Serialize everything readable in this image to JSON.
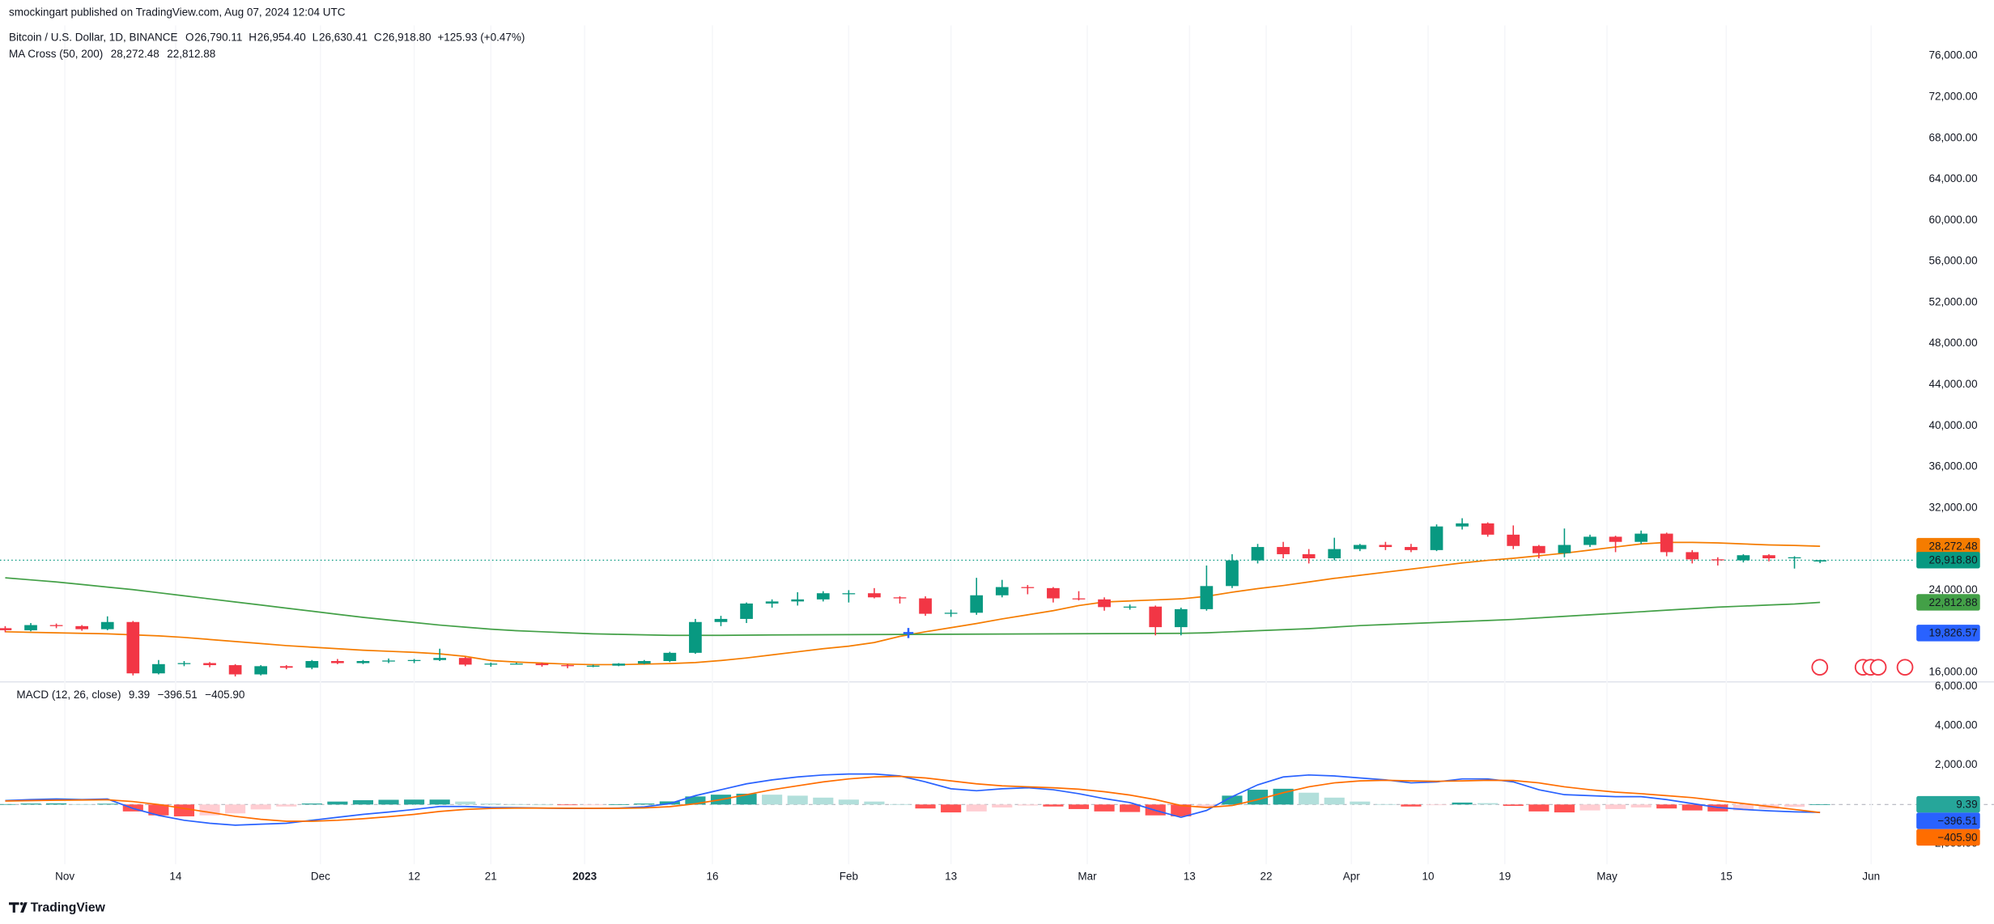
{
  "header": {
    "publisher": "smockingart published on TradingView.com, Aug 07, 2024 12:04 UTC"
  },
  "footer": {
    "brand": "TradingView"
  },
  "chart_data": [
    {
      "type": "candlestick",
      "title": "Bitcoin / U.S. Dollar, 1D, BINANCE",
      "ohlc": [
        {
          "key": "O",
          "label": "26,790.11"
        },
        {
          "key": "H",
          "label": "26,954.40"
        },
        {
          "key": "L",
          "label": "26,630.41"
        },
        {
          "key": "C",
          "label": "26,918.80"
        }
      ],
      "change": "+125.93 (+0.47%)",
      "indicator": "MA Cross (50, 200)",
      "x": [
        "2022-10-25",
        "2022-10-28",
        "2022-10-31",
        "2022-11-03",
        "2022-11-06",
        "2022-11-09",
        "2022-11-12",
        "2022-11-15",
        "2022-11-18",
        "2022-11-21",
        "2022-11-24",
        "2022-11-27",
        "2022-11-30",
        "2022-12-03",
        "2022-12-06",
        "2022-12-09",
        "2022-12-12",
        "2022-12-15",
        "2022-12-18",
        "2022-12-21",
        "2022-12-24",
        "2022-12-27",
        "2022-12-30",
        "2023-01-02",
        "2023-01-05",
        "2023-01-08",
        "2023-01-11",
        "2023-01-14",
        "2023-01-17",
        "2023-01-20",
        "2023-01-23",
        "2023-01-26",
        "2023-01-29",
        "2023-02-01",
        "2023-02-04",
        "2023-02-07",
        "2023-02-10",
        "2023-02-13",
        "2023-02-16",
        "2023-02-19",
        "2023-02-22",
        "2023-02-25",
        "2023-02-28",
        "2023-03-03",
        "2023-03-06",
        "2023-03-09",
        "2023-03-12",
        "2023-03-15",
        "2023-03-18",
        "2023-03-21",
        "2023-03-24",
        "2023-03-27",
        "2023-03-30",
        "2023-04-02",
        "2023-04-05",
        "2023-04-08",
        "2023-04-11",
        "2023-04-14",
        "2023-04-17",
        "2023-04-20",
        "2023-04-23",
        "2023-04-26",
        "2023-04-29",
        "2023-05-02",
        "2023-05-05",
        "2023-05-08",
        "2023-05-11",
        "2023-05-14",
        "2023-05-17",
        "2023-05-20",
        "2023-05-23",
        "2023-05-26"
      ],
      "open": [
        20300,
        20100,
        20600,
        20500,
        20200,
        20900,
        15900,
        16800,
        16900,
        16700,
        15800,
        16600,
        16450,
        17100,
        16900,
        17100,
        17150,
        17200,
        17400,
        16750,
        16850,
        16850,
        16700,
        16600,
        16650,
        16850,
        17100,
        17900,
        20900,
        21200,
        22700,
        22900,
        23100,
        23700,
        23700,
        23300,
        23200,
        21700,
        21800,
        23500,
        24300,
        24200,
        23200,
        23100,
        22350,
        22400,
        20400,
        22150,
        24400,
        26900,
        28200,
        27500,
        27100,
        28000,
        28400,
        28200,
        27900,
        30200,
        30500,
        29400,
        28300,
        27600,
        28400,
        29200,
        28700,
        29500,
        27700,
        27000,
        26900,
        27400,
        27100,
        26790.11
      ],
      "high": [
        20500,
        20800,
        20750,
        20600,
        21450,
        21000,
        17200,
        17100,
        17000,
        16800,
        16700,
        16700,
        17200,
        17300,
        17200,
        17350,
        17300,
        18300,
        17500,
        16950,
        16950,
        16950,
        16800,
        16750,
        16900,
        17200,
        18000,
        21200,
        21500,
        22800,
        23100,
        23800,
        23900,
        24000,
        24200,
        23400,
        23400,
        22100,
        25200,
        25000,
        24500,
        24300,
        23900,
        23300,
        22600,
        22500,
        22300,
        26400,
        27500,
        28500,
        28700,
        28000,
        29100,
        28500,
        28700,
        28500,
        30400,
        31000,
        30600,
        30300,
        28400,
        30000,
        29400,
        29300,
        29800,
        29600,
        27900,
        27200,
        27500,
        27500,
        27300,
        26954.4
      ],
      "low": [
        19900,
        20000,
        20300,
        20050,
        20100,
        15700,
        15800,
        16600,
        16500,
        15600,
        15700,
        16300,
        16300,
        16800,
        16800,
        16900,
        16900,
        17100,
        16600,
        16550,
        16750,
        16550,
        16400,
        16500,
        16600,
        16800,
        17000,
        17800,
        20500,
        20800,
        22300,
        22500,
        22900,
        22800,
        23200,
        22700,
        21500,
        21400,
        21600,
        23300,
        23600,
        22800,
        23000,
        22000,
        22100,
        19600,
        19600,
        22000,
        24200,
        26600,
        27100,
        26600,
        26900,
        27800,
        27900,
        27700,
        27800,
        29900,
        29200,
        28000,
        27100,
        27200,
        28200,
        27700,
        28500,
        27300,
        26600,
        26400,
        26700,
        26800,
        26100,
        26630.41
      ],
      "close": [
        20100,
        20600,
        20500,
        20200,
        20900,
        15900,
        16800,
        16900,
        16700,
        15800,
        16600,
        16450,
        17100,
        16900,
        17100,
        17150,
        17200,
        17400,
        16750,
        16850,
        16850,
        16700,
        16600,
        16650,
        16850,
        17100,
        17900,
        20900,
        21200,
        22700,
        22900,
        23100,
        23700,
        23700,
        23300,
        23200,
        21700,
        21800,
        23500,
        24300,
        24200,
        23200,
        23100,
        22350,
        22400,
        20400,
        22150,
        24400,
        26900,
        28200,
        27500,
        27100,
        28000,
        28400,
        28200,
        27900,
        30200,
        30500,
        29400,
        28300,
        27600,
        28400,
        29200,
        28700,
        29500,
        27700,
        27000,
        26900,
        27400,
        27100,
        27200,
        26918.8
      ],
      "up_color": "#089981",
      "down_color": "#f23645",
      "series": [
        {
          "color": "#f57c00",
          "values": [
            19950,
            19900,
            19850,
            19800,
            19750,
            19650,
            19550,
            19400,
            19200,
            19000,
            18800,
            18600,
            18450,
            18300,
            18150,
            18050,
            17950,
            17800,
            17550,
            17150,
            17000,
            16900,
            16800,
            16750,
            16750,
            16800,
            16850,
            16950,
            17150,
            17400,
            17700,
            18000,
            18300,
            18550,
            18900,
            19500,
            19950,
            20350,
            20750,
            21200,
            21600,
            22000,
            22500,
            22850,
            22950,
            23050,
            23150,
            23400,
            23800,
            24150,
            24450,
            24800,
            25150,
            25450,
            25750,
            26050,
            26350,
            26650,
            26900,
            27100,
            27350,
            27600,
            27900,
            28200,
            28500,
            28650,
            28650,
            28600,
            28500,
            28400,
            28350,
            28272.48
          ]
        },
        {
          "color": "#43a047",
          "values": [
            25200,
            25000,
            24800,
            24550,
            24300,
            24050,
            23750,
            23450,
            23150,
            22850,
            22550,
            22250,
            21950,
            21650,
            21350,
            21100,
            20850,
            20600,
            20400,
            20200,
            20050,
            19950,
            19850,
            19750,
            19700,
            19650,
            19600,
            19600,
            19600,
            19620,
            19640,
            19650,
            19660,
            19670,
            19680,
            19690,
            19700,
            19710,
            19720,
            19730,
            19740,
            19750,
            19760,
            19770,
            19780,
            19790,
            19800,
            19850,
            19950,
            20050,
            20150,
            20250,
            20400,
            20550,
            20650,
            20750,
            20850,
            20950,
            21050,
            21150,
            21300,
            21450,
            21600,
            21750,
            21900,
            22050,
            22200,
            22350,
            22450,
            22550,
            22650,
            22812.88
          ]
        }
      ],
      "price_labels": [
        {
          "value": 28272.48,
          "label": "28,272.48",
          "color": "#f57c00"
        },
        {
          "value": 26918.8,
          "label": "26,918.80",
          "color": "#089981"
        },
        {
          "value": 22812.88,
          "label": "22,812.88",
          "color": "#43a047"
        }
      ],
      "crosshair": {
        "x": "2023-02-08",
        "value": 19826.57,
        "label": "19,826.57",
        "color": "#2962ff"
      },
      "ylim": [
        15134,
        78970
      ],
      "yticks": [
        {
          "value": 16000,
          "label": "16,000.00"
        },
        {
          "value": 20000,
          "label": "20,000.00"
        },
        {
          "value": 24000,
          "label": "24,000.00"
        },
        {
          "value": 28000,
          "label": "28,000.00"
        },
        {
          "value": 32000,
          "label": "32,000.00"
        },
        {
          "value": 36000,
          "label": "36,000.00"
        },
        {
          "value": 40000,
          "label": "40,000.00"
        },
        {
          "value": 44000,
          "label": "44,000.00"
        },
        {
          "value": 48000,
          "label": "48,000.00"
        },
        {
          "value": 52000,
          "label": "52,000.00"
        },
        {
          "value": 56000,
          "label": "56,000.00"
        },
        {
          "value": 60000,
          "label": "60,000.00"
        },
        {
          "value": 64000,
          "label": "64,000.00"
        },
        {
          "value": 68000,
          "label": "68,000.00"
        },
        {
          "value": 72000,
          "label": "72,000.00"
        },
        {
          "value": 76000,
          "label": "76,000.00"
        }
      ],
      "grid": true
    },
    {
      "type": "macd",
      "title": "MACD (12, 26, close)",
      "x": [
        "2022-10-25",
        "2022-10-28",
        "2022-10-31",
        "2022-11-03",
        "2022-11-06",
        "2022-11-09",
        "2022-11-12",
        "2022-11-15",
        "2022-11-18",
        "2022-11-21",
        "2022-11-24",
        "2022-11-27",
        "2022-11-30",
        "2022-12-03",
        "2022-12-06",
        "2022-12-09",
        "2022-12-12",
        "2022-12-15",
        "2022-12-18",
        "2022-12-21",
        "2022-12-24",
        "2022-12-27",
        "2022-12-30",
        "2023-01-02",
        "2023-01-05",
        "2023-01-08",
        "2023-01-11",
        "2023-01-14",
        "2023-01-17",
        "2023-01-20",
        "2023-01-23",
        "2023-01-26",
        "2023-01-29",
        "2023-02-01",
        "2023-02-04",
        "2023-02-07",
        "2023-02-10",
        "2023-02-13",
        "2023-02-16",
        "2023-02-19",
        "2023-02-22",
        "2023-02-25",
        "2023-02-28",
        "2023-03-03",
        "2023-03-06",
        "2023-03-09",
        "2023-03-12",
        "2023-03-15",
        "2023-03-18",
        "2023-03-21",
        "2023-03-24",
        "2023-03-27",
        "2023-03-30",
        "2023-04-02",
        "2023-04-05",
        "2023-04-08",
        "2023-04-11",
        "2023-04-14",
        "2023-04-17",
        "2023-04-20",
        "2023-04-23",
        "2023-04-26",
        "2023-04-29",
        "2023-05-02",
        "2023-05-05",
        "2023-05-08",
        "2023-05-11",
        "2023-05-14",
        "2023-05-17",
        "2023-05-20",
        "2023-05-23",
        "2023-05-26"
      ],
      "histogram": [
        20,
        50,
        60,
        20,
        40,
        -350,
        -550,
        -600,
        -550,
        -450,
        -250,
        -100,
        50,
        150,
        220,
        240,
        250,
        250,
        150,
        50,
        20,
        0,
        -15,
        -10,
        10,
        50,
        160,
        410,
        500,
        550,
        500,
        450,
        350,
        250,
        150,
        20,
        -200,
        -400,
        -350,
        -150,
        -50,
        -100,
        -230,
        -350,
        -380,
        -550,
        -600,
        -150,
        450,
        750,
        800,
        600,
        350,
        150,
        20,
        -100,
        -30,
        100,
        70,
        -70,
        -350,
        -400,
        -300,
        -230,
        -150,
        -200,
        -300,
        -350,
        -300,
        -220,
        -120,
        9.39
      ],
      "hist_colors": [
        "#26a69a",
        "#b2dfdb",
        "#ffcdd2",
        "#ff5252"
      ],
      "series": [
        {
          "color": "#2962ff",
          "values": [
            200,
            250,
            280,
            250,
            280,
            -200,
            -550,
            -800,
            -950,
            -1050,
            -1000,
            -950,
            -800,
            -650,
            -500,
            -380,
            -250,
            -100,
            -100,
            -150,
            -160,
            -180,
            -200,
            -200,
            -180,
            -120,
            50,
            450,
            750,
            1050,
            1250,
            1400,
            1500,
            1550,
            1550,
            1450,
            1150,
            800,
            700,
            800,
            850,
            750,
            550,
            300,
            100,
            -300,
            -650,
            -300,
            400,
            1000,
            1400,
            1500,
            1450,
            1350,
            1250,
            1100,
            1150,
            1300,
            1300,
            1150,
            750,
            500,
            450,
            400,
            400,
            250,
            50,
            -150,
            -250,
            -320,
            -370,
            -396.51
          ]
        },
        {
          "color": "#ff6d00",
          "values": [
            180,
            200,
            220,
            230,
            240,
            150,
            0,
            -200,
            -400,
            -600,
            -750,
            -850,
            -850,
            -800,
            -720,
            -620,
            -500,
            -350,
            -250,
            -200,
            -180,
            -180,
            -185,
            -190,
            -190,
            -170,
            -110,
            40,
            250,
            500,
            750,
            950,
            1150,
            1300,
            1400,
            1430,
            1350,
            1200,
            1050,
            950,
            900,
            850,
            780,
            650,
            480,
            250,
            -50,
            -150,
            -50,
            250,
            600,
            900,
            1100,
            1200,
            1230,
            1200,
            1180,
            1200,
            1230,
            1220,
            1100,
            900,
            750,
            630,
            550,
            450,
            350,
            200,
            50,
            -100,
            -250,
            -405.9
          ]
        }
      ],
      "last_labels": [
        {
          "value": 9.39,
          "label": "9.39",
          "color": "#26a69a"
        },
        {
          "value": -396.51,
          "label": "−396.51",
          "color": "#2962ff"
        },
        {
          "value": -405.9,
          "label": "−405.90",
          "color": "#ff6d00"
        }
      ],
      "ylim": [
        -3032,
        6194
      ],
      "yticks": [
        {
          "value": 6000,
          "label": "6,000.00"
        },
        {
          "value": 4000,
          "label": "4,000.00"
        },
        {
          "value": 2000,
          "label": "2,000.00"
        },
        {
          "value": -2000,
          "label": "−2,000.00"
        }
      ],
      "xticks": [
        {
          "value": "2022-11-01",
          "label": "Nov"
        },
        {
          "value": "2022-11-14",
          "label": "14"
        },
        {
          "value": "2022-12-01",
          "label": "Dec"
        },
        {
          "value": "2022-12-12",
          "label": "12"
        },
        {
          "value": "2022-12-21",
          "label": "21"
        },
        {
          "value": "2023-01-01",
          "label": "2023"
        },
        {
          "value": "2023-01-16",
          "label": "16"
        },
        {
          "value": "2023-02-01",
          "label": "Feb"
        },
        {
          "value": "2023-02-13",
          "label": "13"
        },
        {
          "value": "2023-03-01",
          "label": "Mar"
        },
        {
          "value": "2023-03-13",
          "label": "13"
        },
        {
          "value": "2023-03-22",
          "label": "22"
        },
        {
          "value": "2023-04-01",
          "label": "Apr"
        },
        {
          "value": "2023-04-10",
          "label": "10"
        },
        {
          "value": "2023-04-19",
          "label": "19"
        },
        {
          "value": "2023-05-01",
          "label": "May"
        },
        {
          "value": "2023-05-15",
          "label": "15"
        },
        {
          "value": "2023-06-01",
          "label": "Jun"
        }
      ],
      "grid": true
    }
  ]
}
